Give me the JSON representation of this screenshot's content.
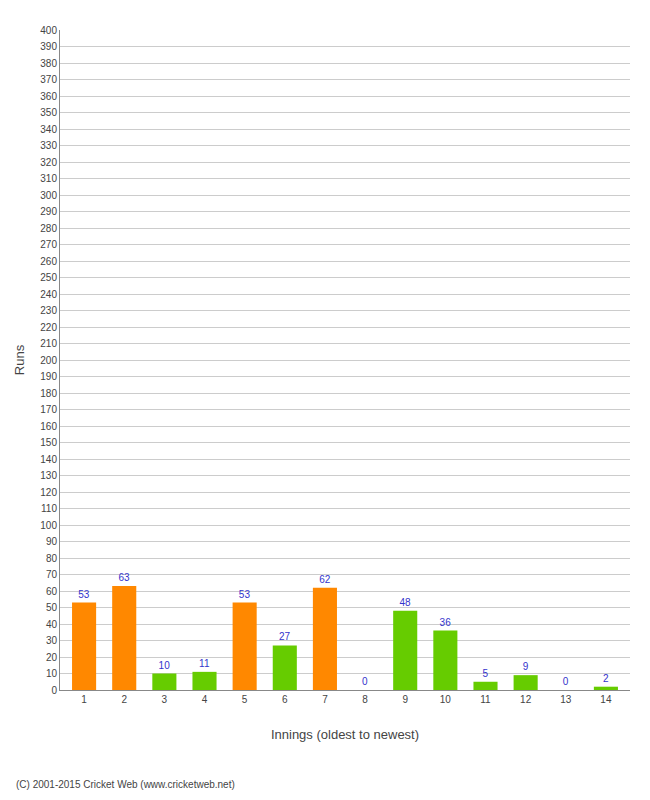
{
  "chart_data": {
    "type": "bar",
    "categories": [
      "1",
      "2",
      "3",
      "4",
      "5",
      "6",
      "7",
      "8",
      "9",
      "10",
      "11",
      "12",
      "13",
      "14"
    ],
    "values": [
      53,
      63,
      10,
      11,
      53,
      27,
      62,
      0,
      48,
      36,
      5,
      9,
      0,
      2
    ],
    "colors": [
      "#ff8800",
      "#ff8800",
      "#66cc00",
      "#66cc00",
      "#ff8800",
      "#66cc00",
      "#ff8800",
      "#66cc00",
      "#66cc00",
      "#66cc00",
      "#66cc00",
      "#66cc00",
      "#66cc00",
      "#66cc00"
    ],
    "xlabel": "Innings (oldest to newest)",
    "ylabel": "Runs",
    "ylim": [
      0,
      400
    ],
    "yticks": [
      0,
      10,
      20,
      30,
      40,
      50,
      60,
      70,
      80,
      90,
      100,
      110,
      120,
      130,
      140,
      150,
      160,
      170,
      180,
      190,
      200,
      210,
      220,
      230,
      240,
      250,
      260,
      270,
      280,
      290,
      300,
      310,
      320,
      330,
      340,
      350,
      360,
      370,
      380,
      390,
      400
    ],
    "grid": true,
    "data_labels": true,
    "annotations": [
      "(C) 2001-2015 Cricket Web (www.cricketweb.net)"
    ]
  }
}
